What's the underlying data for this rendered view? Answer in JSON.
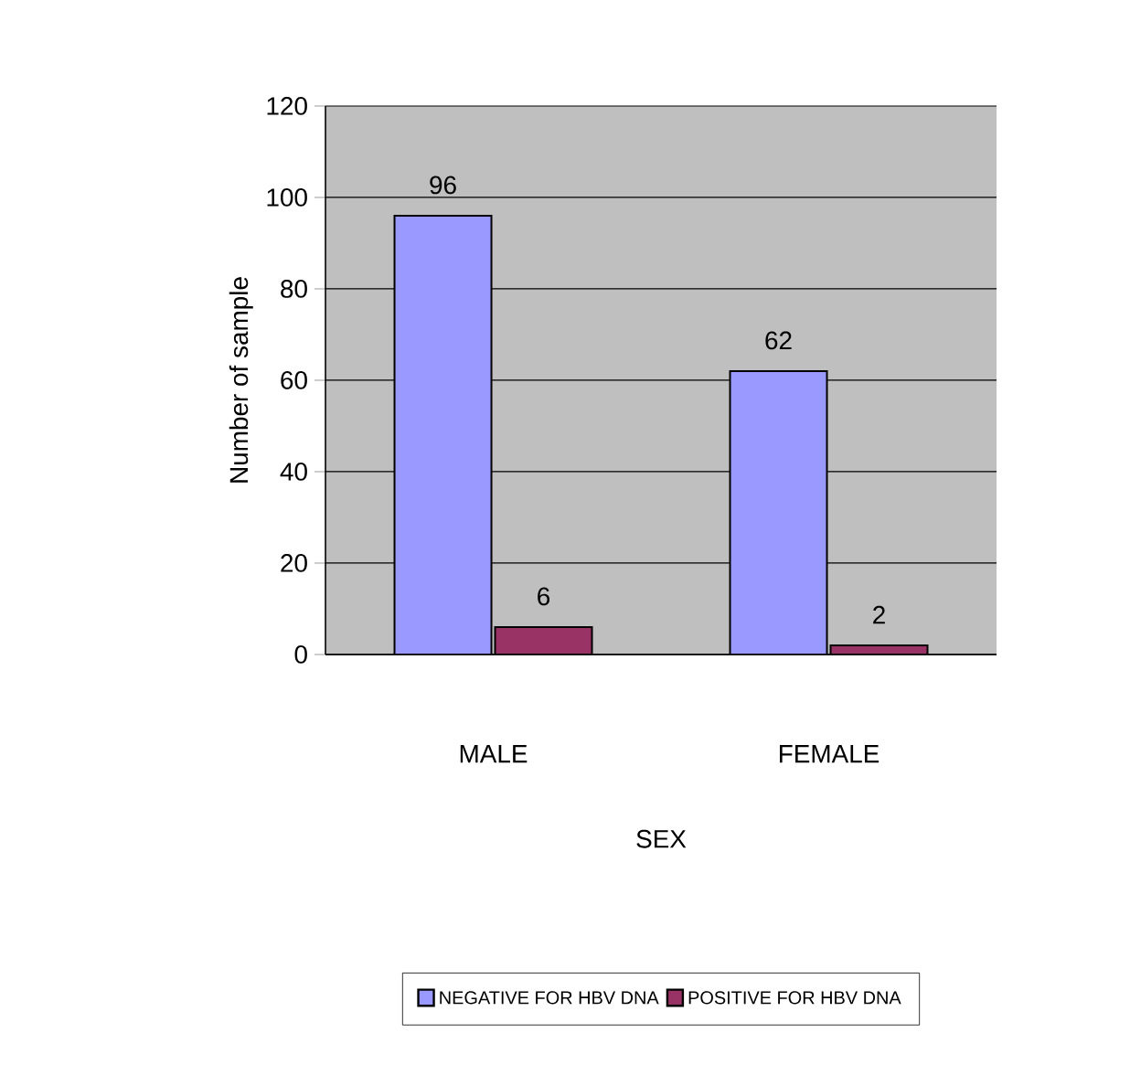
{
  "chart_data": {
    "type": "bar",
    "xlabel": "SEX",
    "ylabel": "Number of sample",
    "categories": [
      "MALE",
      "FEMALE"
    ],
    "series": [
      {
        "name": "NEGATIVE FOR HBV DNA",
        "color": "#9999ff",
        "values": [
          96,
          62
        ]
      },
      {
        "name": "POSITIVE FOR HBV DNA",
        "color": "#993366",
        "values": [
          6,
          2
        ]
      }
    ],
    "ylim": [
      0,
      120
    ],
    "yticks": [
      0,
      20,
      40,
      60,
      80,
      100,
      120
    ],
    "grid": "y",
    "legend": "bottom",
    "data_labels": true
  }
}
